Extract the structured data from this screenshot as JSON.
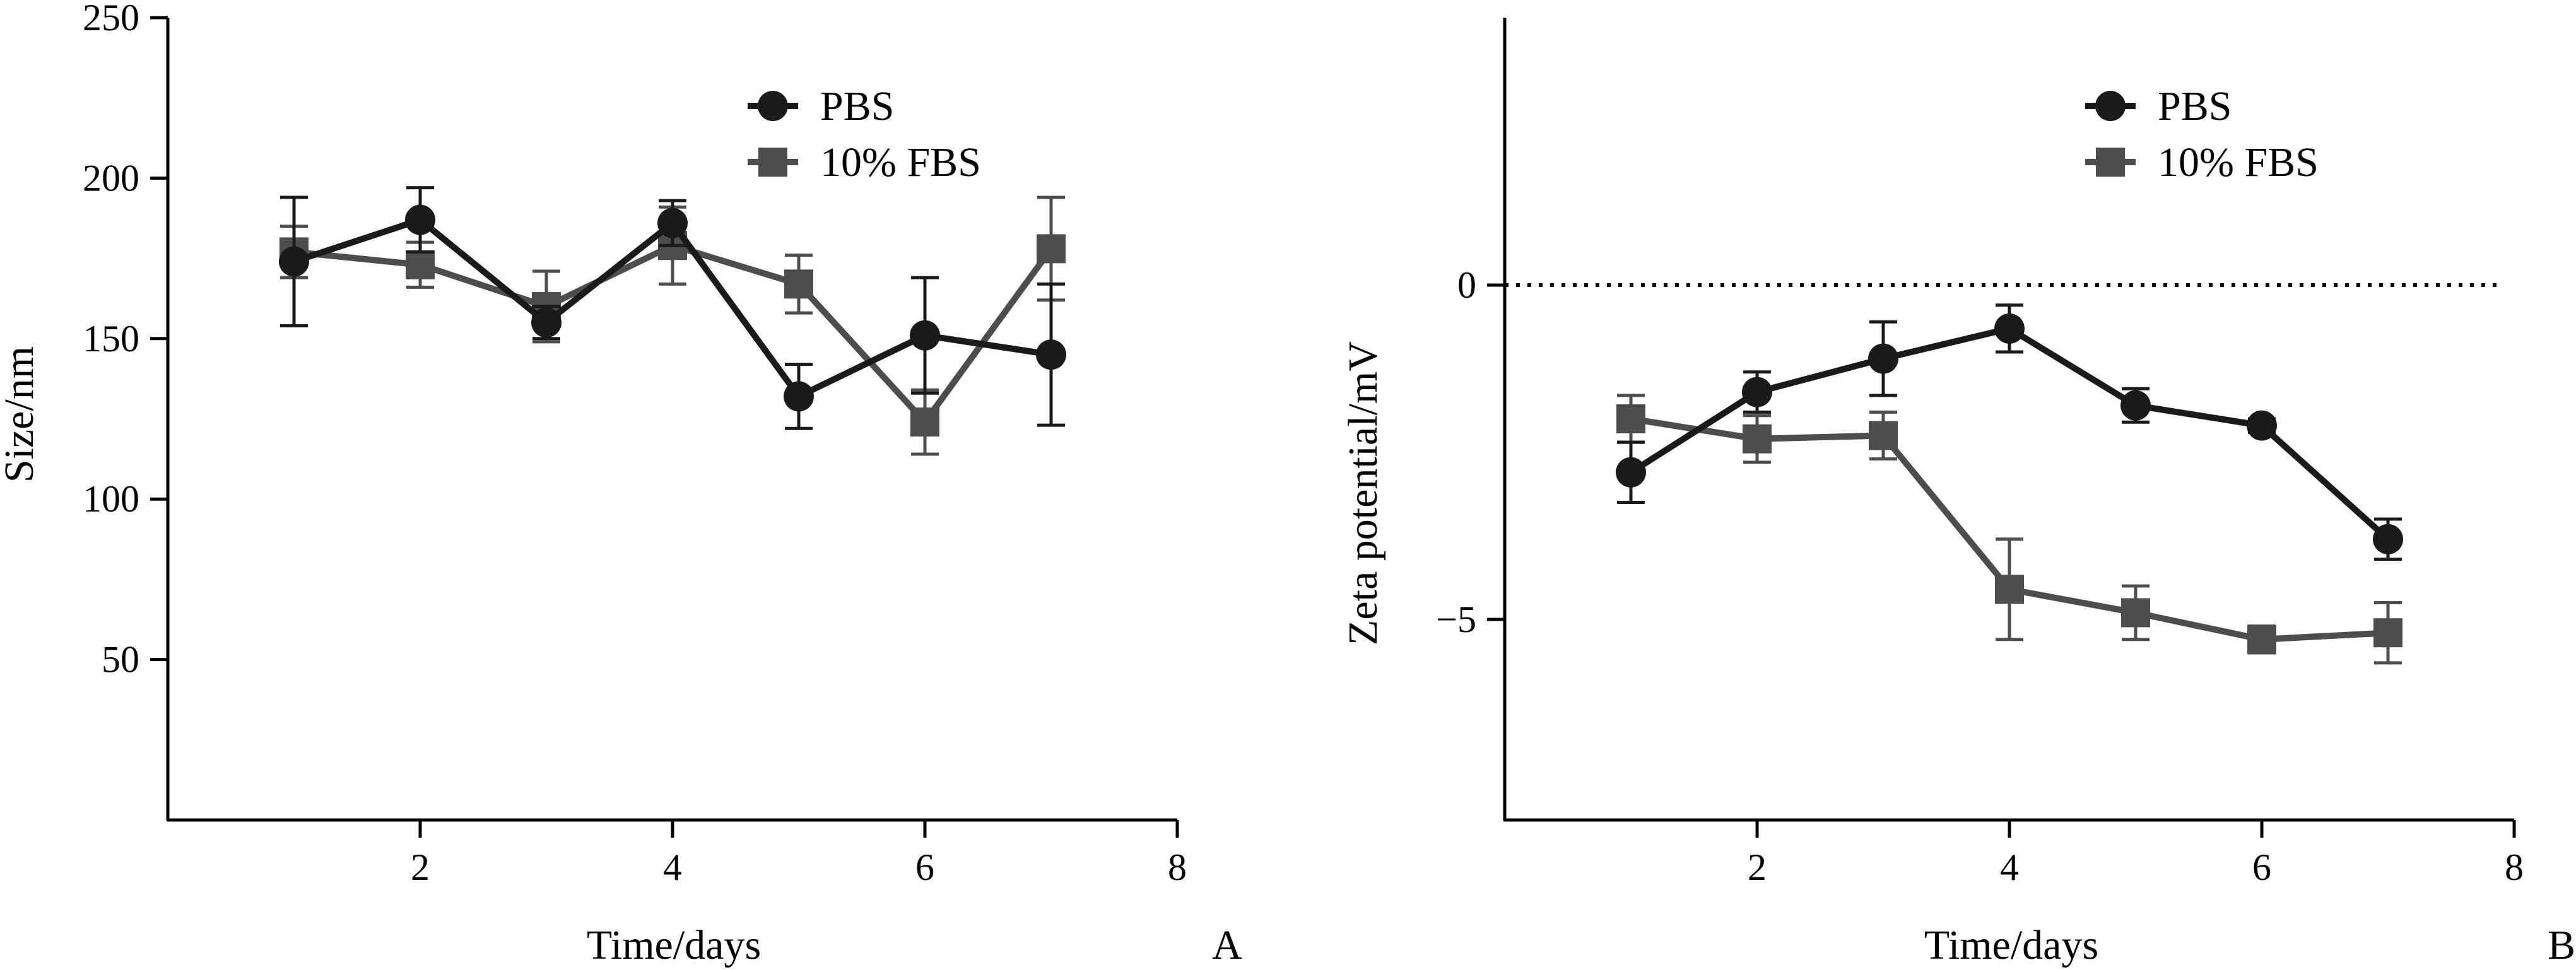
{
  "chart_data": [
    {
      "type": "line",
      "panel_label": "A",
      "title": "",
      "xlabel": "Time/days",
      "ylabel": "Size/nm",
      "xlim": [
        0,
        8
      ],
      "ylim": [
        0,
        250
      ],
      "x_ticks": [
        "2",
        "4",
        "6",
        "8"
      ],
      "y_ticks": [
        "50",
        "100",
        "150",
        "200",
        "250"
      ],
      "legend_position": "top-right",
      "series": [
        {
          "name": "PBS",
          "marker": "circle",
          "color": "#1a1a1a",
          "x": [
            1,
            2,
            3,
            4,
            5,
            6,
            7
          ],
          "y": [
            174,
            187,
            155,
            186,
            132,
            151,
            145
          ],
          "error": [
            20,
            10,
            5,
            7,
            10,
            18,
            22
          ]
        },
        {
          "name": "10% FBS",
          "marker": "square",
          "color": "#4d4d4d",
          "x": [
            1,
            2,
            3,
            4,
            5,
            6,
            7
          ],
          "y": [
            177,
            173,
            160,
            179,
            167,
            124,
            178
          ],
          "error": [
            8,
            7,
            11,
            12,
            9,
            10,
            16
          ]
        }
      ]
    },
    {
      "type": "line",
      "panel_label": "B",
      "title": "",
      "xlabel": "Time/days",
      "ylabel": "Zeta potential/mV",
      "xlim": [
        0,
        8
      ],
      "ylim": [
        -8,
        4
      ],
      "x_ticks": [
        "2",
        "4",
        "6",
        "8"
      ],
      "y_ticks": [
        "-5",
        "0"
      ],
      "reference_line": 0,
      "legend_position": "top-right",
      "series": [
        {
          "name": "PBS",
          "marker": "circle",
          "color": "#1a1a1a",
          "x": [
            1,
            2,
            3,
            4,
            5,
            6,
            7
          ],
          "y": [
            -2.8,
            -1.6,
            -1.1,
            -0.65,
            -1.8,
            -2.1,
            -3.8
          ],
          "error": [
            0.45,
            0.3,
            0.55,
            0.35,
            0.25,
            0.1,
            0.3
          ]
        },
        {
          "name": "10% FBS",
          "marker": "square",
          "color": "#4d4d4d",
          "x": [
            1,
            2,
            3,
            4,
            5,
            6,
            7
          ],
          "y": [
            -2.0,
            -2.3,
            -2.25,
            -4.55,
            -4.9,
            -5.3,
            -5.2
          ],
          "error": [
            0.35,
            0.35,
            0.35,
            0.75,
            0.4,
            0.2,
            0.45
          ]
        }
      ]
    }
  ]
}
